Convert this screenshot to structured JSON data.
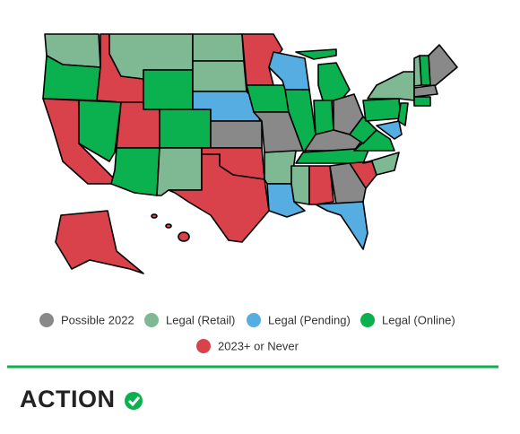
{
  "legend": [
    {
      "label": "Possible 2022",
      "color": "#898989"
    },
    {
      "label": "Legal (Retail)",
      "color": "#7fb993"
    },
    {
      "label": "Legal (Pending)",
      "color": "#55ade2"
    },
    {
      "label": "Legal (Online)",
      "color": "#0cb14f"
    },
    {
      "label": "2023+ or Never",
      "color": "#d9424b"
    }
  ],
  "brand": "ACTION"
}
